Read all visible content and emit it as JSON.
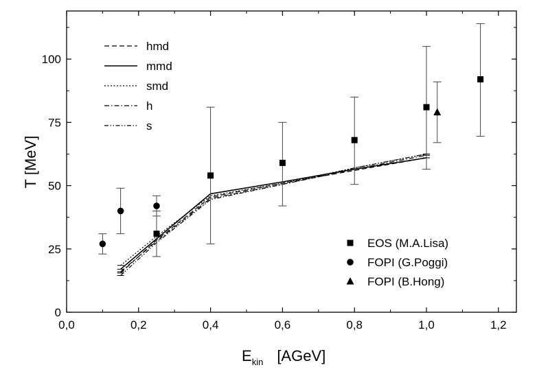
{
  "chart_data": {
    "type": "scatter",
    "title": "",
    "xlabel_main": "E",
    "xlabel_sub": "kin",
    "xlabel_unit": "[AGeV]",
    "ylabel": "T  [MeV]",
    "xlim": [
      0.0,
      1.25
    ],
    "ylim": [
      0,
      119
    ],
    "x_ticks": [
      0.0,
      0.2,
      0.4,
      0.6,
      0.8,
      1.0,
      1.2
    ],
    "x_tick_labels": [
      "0,0",
      "0,2",
      "0,4",
      "0,6",
      "0,8",
      "1,0",
      "1,2"
    ],
    "y_ticks": [
      0,
      25,
      50,
      75,
      100
    ],
    "y_tick_labels": [
      "0",
      "25",
      "50",
      "75",
      "100"
    ],
    "grid": false,
    "line_series": [
      {
        "name": "hmd",
        "style": "dashed",
        "x": [
          0.15,
          0.25,
          0.4,
          0.6,
          0.8,
          1.0
        ],
        "y": [
          15.5,
          28.5,
          45.5,
          51.0,
          56.0,
          61.0
        ]
      },
      {
        "name": "mmd",
        "style": "solid",
        "x": [
          0.15,
          0.25,
          0.4,
          0.6,
          0.8,
          1.0
        ],
        "y": [
          17.0,
          29.0,
          46.8,
          51.5,
          56.5,
          61.0
        ]
      },
      {
        "name": "smd",
        "style": "dotted",
        "x": [
          0.15,
          0.25,
          0.4,
          0.6,
          0.8,
          1.0
        ],
        "y": [
          18.5,
          30.0,
          46.0,
          51.0,
          57.0,
          62.5
        ]
      },
      {
        "name": "h",
        "style": "dashdot",
        "x": [
          0.15,
          0.25,
          0.4,
          0.6,
          0.8,
          1.0
        ],
        "y": [
          16.0,
          28.0,
          45.0,
          50.5,
          56.5,
          62.0
        ]
      },
      {
        "name": "s",
        "style": "dashdotdot",
        "x": [
          0.15,
          0.25,
          0.4,
          0.6,
          0.8,
          1.0
        ],
        "y": [
          14.5,
          27.5,
          44.5,
          50.5,
          57.0,
          62.5
        ]
      }
    ],
    "point_series": [
      {
        "name": "EOS (M.A.Lisa)",
        "marker": "square",
        "points": [
          {
            "x": 0.25,
            "y": 31,
            "err_low": 22,
            "err_high": 40
          },
          {
            "x": 0.4,
            "y": 54,
            "err_low": 27,
            "err_high": 81
          },
          {
            "x": 0.6,
            "y": 59,
            "err_low": 42,
            "err_high": 75
          },
          {
            "x": 0.8,
            "y": 68,
            "err_low": 50.5,
            "err_high": 85
          },
          {
            "x": 1.0,
            "y": 81,
            "err_low": 56.5,
            "err_high": 105
          },
          {
            "x": 1.15,
            "y": 92,
            "err_low": 69.5,
            "err_high": 114
          }
        ]
      },
      {
        "name": "FOPI (G.Poggi)",
        "marker": "circle",
        "points": [
          {
            "x": 0.1,
            "y": 27,
            "err_low": 23,
            "err_high": 31
          },
          {
            "x": 0.15,
            "y": 40,
            "err_low": 31,
            "err_high": 49
          },
          {
            "x": 0.25,
            "y": 42,
            "err_low": 38,
            "err_high": 46
          }
        ]
      },
      {
        "name": "FOPI (B.Hong)",
        "marker": "triangle",
        "points": [
          {
            "x": 1.03,
            "y": 79,
            "err_low": 67,
            "err_high": 91
          }
        ]
      }
    ]
  }
}
